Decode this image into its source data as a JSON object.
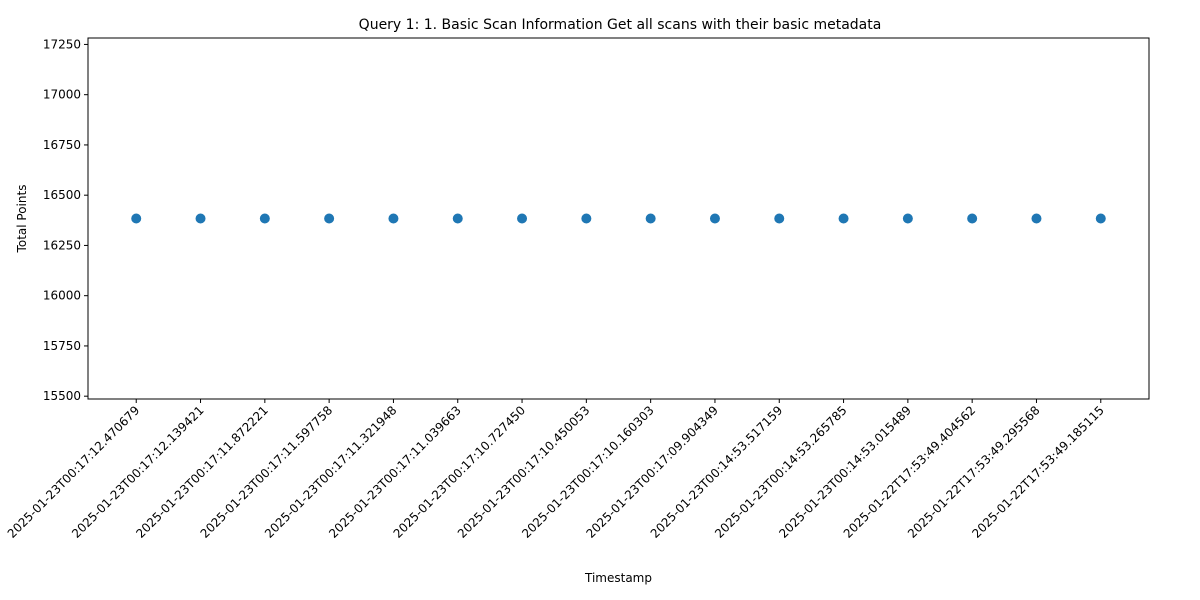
{
  "chart_data": {
    "type": "scatter",
    "title": "Query 1: 1. Basic Scan Information Get all scans with their basic metadata",
    "xlabel": "Timestamp",
    "ylabel": "Total Points",
    "x": [
      "2025-01-23T00:17:12.470679",
      "2025-01-23T00:17:12.139421",
      "2025-01-23T00:17:11.872221",
      "2025-01-23T00:17:11.597758",
      "2025-01-23T00:17:11.321948",
      "2025-01-23T00:17:11.039663",
      "2025-01-23T00:17:10.727450",
      "2025-01-23T00:17:10.450053",
      "2025-01-23T00:17:10.160303",
      "2025-01-23T00:17:09.904349",
      "2025-01-23T00:14:53.517159",
      "2025-01-23T00:14:53.265785",
      "2025-01-23T00:14:53.015489",
      "2025-01-22T17:53:49.404562",
      "2025-01-22T17:53:49.295568",
      "2025-01-22T17:53:49.185115"
    ],
    "y": [
      16384,
      16384,
      16384,
      16384,
      16384,
      16384,
      16384,
      16384,
      16384,
      16384,
      16384,
      16384,
      16384,
      16384,
      16384,
      16384
    ],
    "ylim": [
      15486,
      17282
    ],
    "yticks": [
      "15500",
      "15750",
      "16000",
      "16250",
      "16500",
      "16750",
      "17000",
      "17250"
    ],
    "point_color": "#1f77b4",
    "grid": false,
    "legend": "none"
  }
}
